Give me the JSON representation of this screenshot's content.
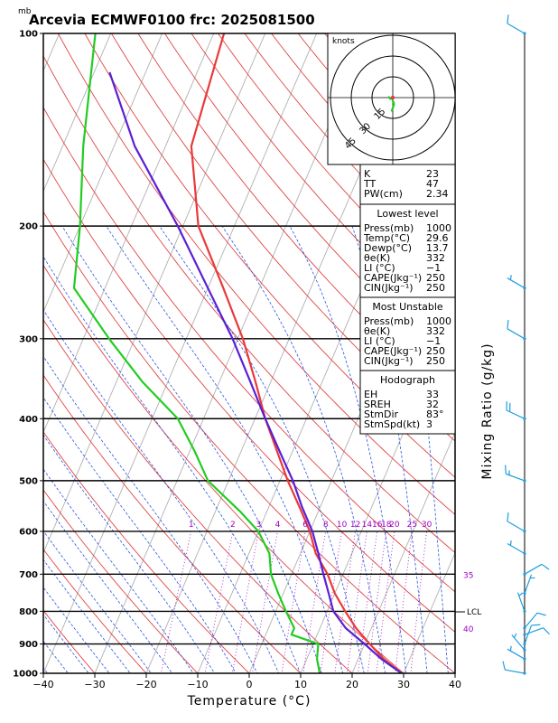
{
  "title": "Arcevia ECMWF0100 frc: 2025081500",
  "pressure_unit": "mb",
  "xlabel": "Temperature (°C)",
  "right_label": "Mixing Ratio (g/kg)",
  "lcl_label": "LCL",
  "hodograph": {
    "units_label": "knots",
    "ring_labels": [
      "15",
      "30",
      "45"
    ]
  },
  "indices": {
    "general": [
      {
        "label": "K",
        "value": "23"
      },
      {
        "label": "TT",
        "value": "47"
      },
      {
        "label": "PW(cm)",
        "value": "2.34"
      }
    ],
    "lowest_level": {
      "heading": "Lowest level",
      "rows": [
        {
          "label": "Press(mb)",
          "value": "1000"
        },
        {
          "label": "Temp(°C)",
          "value": "29.6"
        },
        {
          "label": "Dewp(°C)",
          "value": "13.7"
        },
        {
          "label": "θe(K)",
          "value": "332"
        },
        {
          "label": "LI (°C)",
          "value": "−1"
        },
        {
          "label": "CAPE(Jkg⁻¹)",
          "value": "250"
        },
        {
          "label": "CIN(Jkg⁻¹)",
          "value": "250"
        }
      ]
    },
    "most_unstable": {
      "heading": "Most Unstable",
      "rows": [
        {
          "label": "Press(mb)",
          "value": "1000"
        },
        {
          "label": "θe(K)",
          "value": "332"
        },
        {
          "label": "LI (°C)",
          "value": "−1"
        },
        {
          "label": "CAPE(Jkg⁻¹)",
          "value": "250"
        },
        {
          "label": "CIN(Jkg⁻¹)",
          "value": "250"
        }
      ]
    },
    "hodograph": {
      "heading": "Hodograph",
      "rows": [
        {
          "label": "EH",
          "value": "33"
        },
        {
          "label": "SREH",
          "value": "32"
        },
        {
          "label": "StmDir",
          "value": "83°"
        },
        {
          "label": "StmSpd(kt)",
          "value": "3"
        }
      ]
    }
  },
  "colors": {
    "temperature": "#e83a3a",
    "dewpoint": "#22cc22",
    "parcel": "#5a1fd6",
    "isotherm": "#b0b0b0",
    "dry_adiabat": "#e04444",
    "moist_adiabat": "#2a55e0",
    "mixing_ratio": "#a000c0",
    "wind_barb": "#1e9ee0"
  },
  "chart_data": {
    "type": "line",
    "title": "Arcevia ECMWF0100 frc: 2025081500",
    "xlabel": "Temperature (°C)",
    "ylabel": "mb",
    "xlim": [
      -40,
      40
    ],
    "ylim": [
      1000,
      100
    ],
    "x_ticks": [
      -40,
      -30,
      -20,
      -10,
      0,
      10,
      20,
      30,
      40
    ],
    "pressure_ticks": [
      1000,
      900,
      800,
      700,
      600,
      500,
      400,
      300,
      200,
      100
    ],
    "mixing_ratio_labels": [
      {
        "value": "1",
        "mr": 1
      },
      {
        "value": "2",
        "mr": 2
      },
      {
        "value": "3",
        "mr": 3
      },
      {
        "value": "4",
        "mr": 4
      },
      {
        "value": "6",
        "mr": 6
      },
      {
        "value": "8",
        "mr": 8
      },
      {
        "value": "10",
        "mr": 10
      },
      {
        "value": "12",
        "mr": 12
      },
      {
        "value": "14",
        "mr": 14
      },
      {
        "value": "16",
        "mr": 16
      },
      {
        "value": "18",
        "mr": 18
      },
      {
        "value": "20",
        "mr": 20
      },
      {
        "value": "25",
        "mr": 25
      },
      {
        "value": "30",
        "mr": 30
      }
    ],
    "side_mr_labels": [
      {
        "value": "35",
        "p": 700
      },
      {
        "value": "40",
        "p": 850
      }
    ],
    "series": [
      {
        "name": "temperature",
        "points": [
          [
            1000,
            29.6
          ],
          [
            950,
            25
          ],
          [
            900,
            21
          ],
          [
            850,
            17
          ],
          [
            800,
            13.5
          ],
          [
            750,
            10
          ],
          [
            700,
            7
          ],
          [
            650,
            3
          ],
          [
            600,
            0
          ],
          [
            550,
            -4
          ],
          [
            500,
            -8.5
          ],
          [
            450,
            -13
          ],
          [
            400,
            -18
          ],
          [
            350,
            -23
          ],
          [
            300,
            -29
          ],
          [
            250,
            -37
          ],
          [
            200,
            -47
          ],
          [
            150,
            -55
          ],
          [
            100,
            -58
          ]
        ]
      },
      {
        "name": "dewpoint",
        "points": [
          [
            1000,
            13.7
          ],
          [
            950,
            12
          ],
          [
            900,
            11
          ],
          [
            870,
            5
          ],
          [
            850,
            5
          ],
          [
            800,
            2
          ],
          [
            750,
            -1
          ],
          [
            700,
            -4
          ],
          [
            650,
            -6
          ],
          [
            600,
            -10
          ],
          [
            560,
            -15
          ],
          [
            500,
            -24
          ],
          [
            450,
            -29
          ],
          [
            400,
            -35
          ],
          [
            350,
            -45
          ],
          [
            300,
            -55
          ],
          [
            250,
            -66
          ],
          [
            200,
            -70
          ],
          [
            150,
            -76
          ],
          [
            100,
            -83
          ]
        ]
      },
      {
        "name": "parcel",
        "points": [
          [
            1000,
            29.6
          ],
          [
            950,
            24.5
          ],
          [
            900,
            20
          ],
          [
            850,
            15
          ],
          [
            800,
            11.2
          ],
          [
            750,
            8.8
          ],
          [
            700,
            6.2
          ],
          [
            650,
            3.5
          ],
          [
            600,
            0.5
          ],
          [
            550,
            -3.5
          ],
          [
            500,
            -7.5
          ],
          [
            450,
            -12.5
          ],
          [
            400,
            -18
          ],
          [
            350,
            -24
          ],
          [
            300,
            -31
          ],
          [
            250,
            -40
          ],
          [
            200,
            -51
          ],
          [
            150,
            -66
          ],
          [
            115,
            -77
          ]
        ]
      }
    ],
    "wind_barbs": [
      {
        "p": 1000,
        "speed": 10,
        "dir": 280
      },
      {
        "p": 950,
        "speed": 5,
        "dir": 300
      },
      {
        "p": 920,
        "speed": 5,
        "dir": 320
      },
      {
        "p": 900,
        "speed": 10,
        "dir": 20
      },
      {
        "p": 870,
        "speed": 10,
        "dir": 70
      },
      {
        "p": 850,
        "speed": 10,
        "dir": 40
      },
      {
        "p": 800,
        "speed": 5,
        "dir": 340
      },
      {
        "p": 750,
        "speed": 5,
        "dir": 20
      },
      {
        "p": 700,
        "speed": 10,
        "dir": 60
      },
      {
        "p": 650,
        "speed": 5,
        "dir": 300
      },
      {
        "p": 600,
        "speed": 10,
        "dir": 300
      },
      {
        "p": 500,
        "speed": 15,
        "dir": 290
      },
      {
        "p": 400,
        "speed": 20,
        "dir": 295
      },
      {
        "p": 300,
        "speed": 10,
        "dir": 300
      },
      {
        "p": 250,
        "speed": 5,
        "dir": 300
      },
      {
        "p": 100,
        "speed": 10,
        "dir": 300
      }
    ],
    "hodograph_points": [
      [
        -3,
        1
      ],
      [
        -2,
        -1
      ],
      [
        0,
        -1
      ],
      [
        0,
        -3
      ],
      [
        1,
        -5
      ],
      [
        0,
        -8
      ],
      [
        -1,
        -10
      ],
      [
        1,
        -4
      ],
      [
        0,
        -2
      ]
    ]
  }
}
